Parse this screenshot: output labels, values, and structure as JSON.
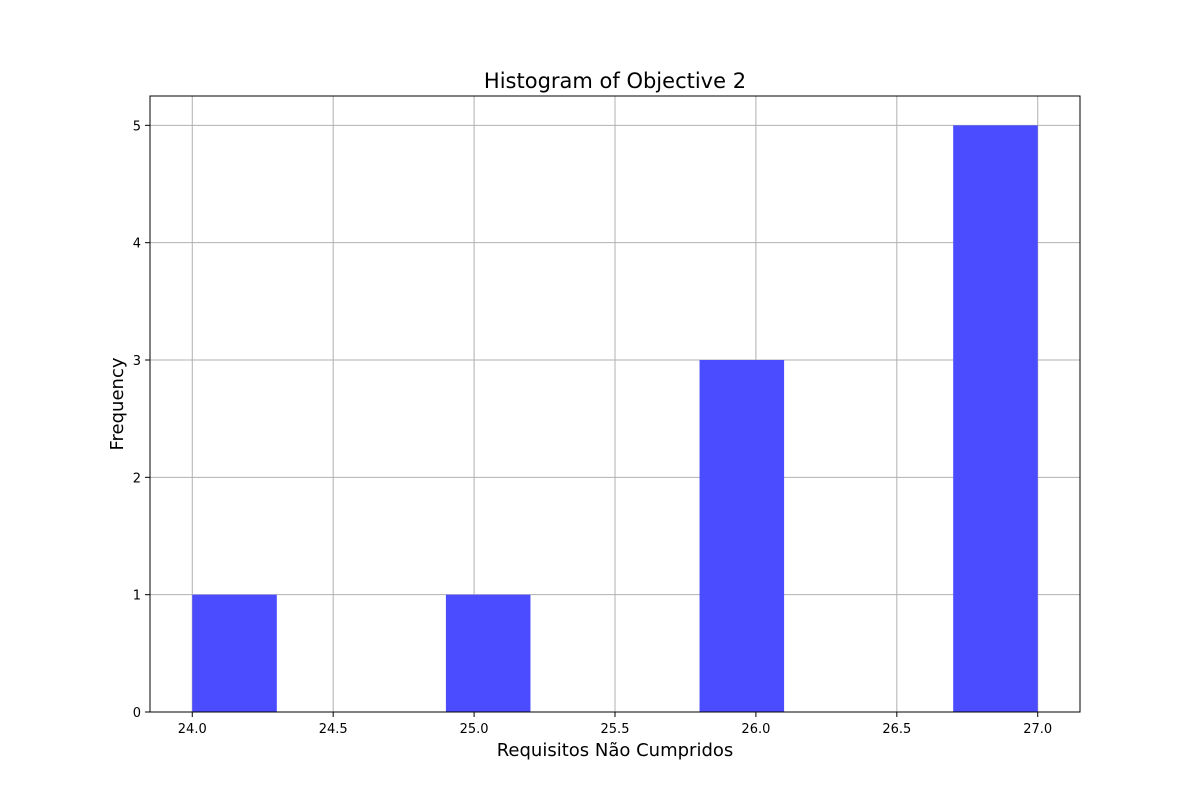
{
  "chart_data": {
    "type": "bar",
    "title": "Histogram of Objective 2",
    "xlabel": "Requisitos Não Cumpridos",
    "ylabel": "Frequency",
    "xlim": [
      23.85,
      27.15
    ],
    "ylim": [
      0,
      5.25
    ],
    "xticks": [
      24.0,
      24.5,
      25.0,
      25.5,
      26.0,
      26.5,
      27.0
    ],
    "xtick_labels": [
      "24.0",
      "24.5",
      "25.0",
      "25.5",
      "26.0",
      "26.5",
      "27.0"
    ],
    "yticks": [
      0,
      1,
      2,
      3,
      4,
      5
    ],
    "ytick_labels": [
      "0",
      "1",
      "2",
      "3",
      "4",
      "5"
    ],
    "bins": [
      {
        "x0": 24.0,
        "x1": 24.3,
        "count": 1
      },
      {
        "x0": 24.3,
        "x1": 24.6,
        "count": 0
      },
      {
        "x0": 24.6,
        "x1": 24.9,
        "count": 0
      },
      {
        "x0": 24.9,
        "x1": 25.2,
        "count": 1
      },
      {
        "x0": 25.2,
        "x1": 25.5,
        "count": 0
      },
      {
        "x0": 25.5,
        "x1": 25.8,
        "count": 0
      },
      {
        "x0": 25.8,
        "x1": 26.1,
        "count": 3
      },
      {
        "x0": 26.1,
        "x1": 26.4,
        "count": 0
      },
      {
        "x0": 26.4,
        "x1": 26.7,
        "count": 0
      },
      {
        "x0": 26.7,
        "x1": 27.0,
        "count": 5
      }
    ],
    "bar_color": "#4b4bff",
    "grid": true,
    "grid_color": "#b0b0b0"
  }
}
